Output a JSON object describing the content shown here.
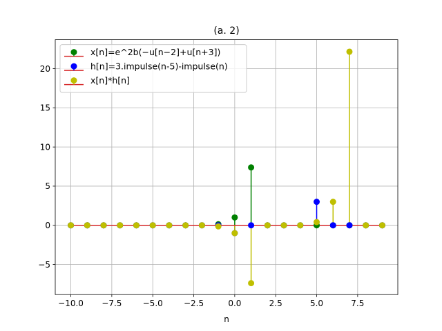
{
  "chart_data": {
    "type": "stem",
    "title": "(a. 2)",
    "xlabel": "n",
    "ylabel": "",
    "xlim": [
      -10.95,
      9.95
    ],
    "ylim": [
      -8.85,
      23.7
    ],
    "xticks": [
      -10.0,
      -7.5,
      -5.0,
      -2.5,
      0.0,
      2.5,
      5.0,
      7.5
    ],
    "xtick_labels": [
      "−10.0",
      "−7.5",
      "−5.0",
      "−2.5",
      "0.0",
      "2.5",
      "5.0",
      "7.5"
    ],
    "yticks": [
      -5,
      0,
      5,
      10,
      15,
      20
    ],
    "ytick_labels": [
      "−5",
      "0",
      "5",
      "10",
      "15",
      "20"
    ],
    "grid": true,
    "legend_position": "upper-left",
    "baseline_color": "#d62728",
    "x": [
      -10,
      -9,
      -8,
      -7,
      -6,
      -5,
      -4,
      -3,
      -2,
      -1,
      0,
      1,
      2,
      3,
      4,
      5,
      6,
      7,
      8,
      9
    ],
    "series": [
      {
        "name": "x[n]=e^2b(−u[n−2]+u[n+3])",
        "color": "#008000",
        "values": [
          0,
          0,
          0,
          0,
          0,
          0,
          0,
          0,
          0,
          0.14,
          1.0,
          7.39,
          0,
          0,
          0,
          0,
          0,
          0,
          0,
          0
        ]
      },
      {
        "name": "h[n]=3.impulse(n-5)-impulse(n)",
        "color": "#0000ff",
        "values": [
          0,
          0,
          0,
          0,
          0,
          0,
          0,
          0,
          0,
          0,
          -1,
          0,
          0,
          0,
          0,
          3,
          0,
          0,
          0,
          0
        ]
      },
      {
        "name": "x[n]*h[n]",
        "color": "#bfbf00",
        "values": [
          0,
          0,
          0,
          0,
          0,
          0,
          0,
          0,
          0,
          -0.14,
          -1.0,
          -7.39,
          0,
          0,
          0,
          0.41,
          3.0,
          22.17,
          0,
          0
        ]
      }
    ]
  }
}
